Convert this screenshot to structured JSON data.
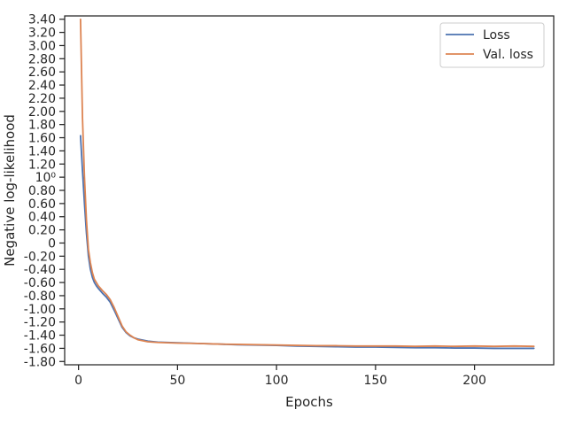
{
  "chart_data": {
    "type": "line",
    "title": "",
    "xlabel": "Epochs",
    "ylabel": "Negative log-likelihood",
    "xlim": [
      -7,
      240
    ],
    "ylim": [
      -1.85,
      3.45
    ],
    "x_ticks": [
      0,
      50,
      100,
      150,
      200
    ],
    "x_tick_labels": [
      "0",
      "50",
      "100",
      "150",
      "200"
    ],
    "y_ticks": [
      -1.8,
      -1.6,
      -1.4,
      -1.2,
      -1.0,
      -0.8,
      -0.6,
      -0.4,
      -0.2,
      0,
      0.2,
      0.4,
      0.6,
      0.8,
      1.0,
      1.2,
      1.4,
      1.6,
      1.8,
      2.0,
      2.2,
      2.4,
      2.6,
      2.8,
      3.0,
      3.2,
      3.4
    ],
    "y_tick_labels": [
      "-1.80",
      "-1.60",
      "-1.40",
      "-1.20",
      "-1.00",
      "-0.80",
      "-0.60",
      "-0.40",
      "-0.20",
      "0",
      "0.20",
      "0.40",
      "0.60",
      "0.80",
      "10⁰",
      "1.20",
      "1.40",
      "1.60",
      "1.80",
      "2.00",
      "2.20",
      "2.40",
      "2.60",
      "2.80",
      "3.00",
      "3.20",
      "3.40"
    ],
    "grid": false,
    "legend_position": "top-right",
    "series": [
      {
        "name": "Loss",
        "color": "#4c72b0",
        "x": [
          1,
          2,
          3,
          4,
          5,
          6,
          7,
          8,
          9,
          10,
          12,
          14,
          16,
          18,
          20,
          22,
          24,
          26,
          28,
          30,
          35,
          40,
          50,
          60,
          70,
          80,
          90,
          100,
          110,
          120,
          130,
          140,
          150,
          160,
          170,
          180,
          190,
          200,
          210,
          220,
          230
        ],
        "values": [
          1.63,
          1.1,
          0.6,
          0.15,
          -0.2,
          -0.4,
          -0.52,
          -0.6,
          -0.65,
          -0.69,
          -0.76,
          -0.82,
          -0.9,
          -1.02,
          -1.15,
          -1.28,
          -1.36,
          -1.41,
          -1.44,
          -1.46,
          -1.49,
          -1.505,
          -1.515,
          -1.525,
          -1.535,
          -1.545,
          -1.55,
          -1.555,
          -1.565,
          -1.57,
          -1.575,
          -1.58,
          -1.58,
          -1.585,
          -1.59,
          -1.59,
          -1.595,
          -1.595,
          -1.6,
          -1.6,
          -1.6
        ]
      },
      {
        "name": "Val. loss",
        "color": "#dd8452",
        "x": [
          1,
          2,
          3,
          4,
          5,
          6,
          7,
          8,
          9,
          10,
          12,
          14,
          16,
          18,
          20,
          22,
          24,
          26,
          28,
          30,
          35,
          40,
          50,
          60,
          70,
          80,
          90,
          100,
          110,
          120,
          130,
          140,
          150,
          160,
          170,
          180,
          190,
          200,
          210,
          220,
          230
        ],
        "values": [
          3.4,
          1.9,
          1.0,
          0.35,
          -0.1,
          -0.3,
          -0.45,
          -0.55,
          -0.6,
          -0.65,
          -0.72,
          -0.78,
          -0.86,
          -0.98,
          -1.12,
          -1.26,
          -1.35,
          -1.4,
          -1.44,
          -1.47,
          -1.5,
          -1.51,
          -1.52,
          -1.525,
          -1.535,
          -1.54,
          -1.545,
          -1.55,
          -1.555,
          -1.56,
          -1.56,
          -1.565,
          -1.565,
          -1.565,
          -1.57,
          -1.565,
          -1.57,
          -1.565,
          -1.57,
          -1.565,
          -1.57
        ]
      }
    ]
  }
}
